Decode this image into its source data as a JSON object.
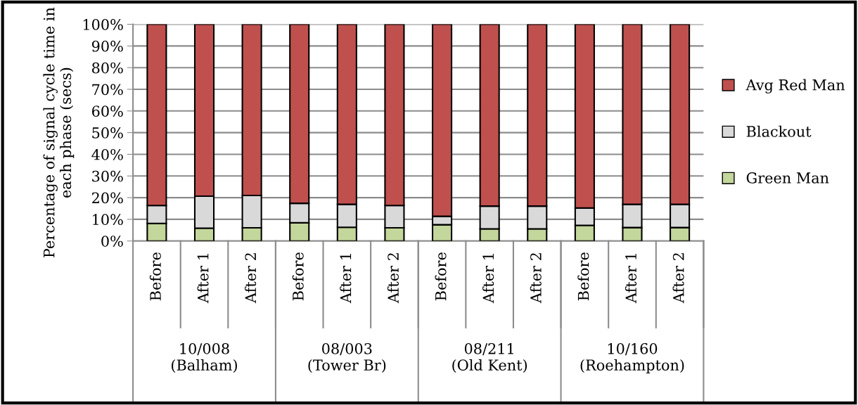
{
  "chart_data": {
    "type": "bar",
    "stacked": true,
    "ylabel": "Percentage of signal cycle time in each phase (secs)",
    "categories": [
      "Before",
      "After 1",
      "After 2",
      "Before",
      "After 1",
      "After 2",
      "Before",
      "After 1",
      "After 2",
      "Before",
      "After 1",
      "After 2"
    ],
    "annotations": [
      "10/008 (Balham)",
      "08/003 (Tower Br)",
      "08/211 (Old Kent)",
      "10/160 (Roehampton)"
    ],
    "series": [
      {
        "name": "Green Man",
        "color": "#c3d69b",
        "values": [
          8.1,
          5.9,
          6.1,
          8.4,
          6.3,
          6.1,
          7.5,
          5.6,
          5.6,
          7.2,
          6.2,
          6.2
        ]
      },
      {
        "name": "Blackout",
        "color": "#d9d9d9",
        "values": [
          8.3,
          14.8,
          14.9,
          9.0,
          10.6,
          10.3,
          3.9,
          10.5,
          10.5,
          8.0,
          10.7,
          10.7
        ]
      },
      {
        "name": "Avg Red Man",
        "color": "#c0504d",
        "values": [
          83.6,
          79.3,
          79.0,
          82.6,
          83.1,
          83.6,
          88.6,
          83.9,
          83.9,
          84.8,
          83.1,
          83.1
        ]
      }
    ],
    "ylim": [
      0,
      100
    ],
    "yticks": [
      {
        "value": 0,
        "label": "0%"
      },
      {
        "value": 10,
        "label": "10%"
      },
      {
        "value": 20,
        "label": "20%"
      },
      {
        "value": 30,
        "label": "30%"
      },
      {
        "value": 40,
        "label": "40%"
      },
      {
        "value": 50,
        "label": "50%"
      },
      {
        "value": 60,
        "label": "60%"
      },
      {
        "value": 70,
        "label": "70%"
      },
      {
        "value": 80,
        "label": "80%"
      },
      {
        "value": 90,
        "label": "90%"
      },
      {
        "value": 100,
        "label": "100%"
      }
    ],
    "grid": "y",
    "legend": "right"
  }
}
